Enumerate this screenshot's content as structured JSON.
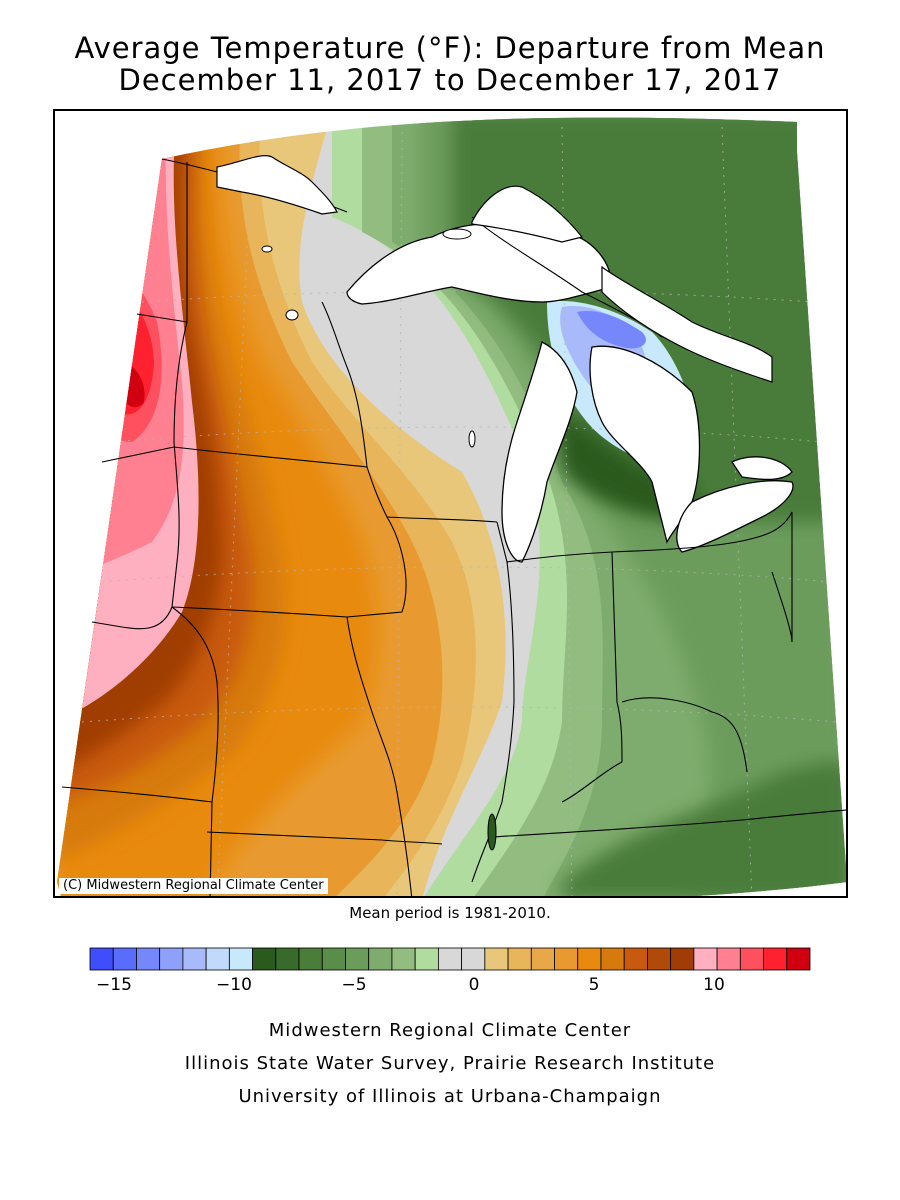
{
  "title_line1": "Average Temperature (°F): Departure from Mean",
  "title_line2": "December 11, 2017 to December 17, 2017",
  "copyright": "(C) Midwestern Regional Climate Center",
  "mean_period": "Mean period is 1981-2010.",
  "legend": {
    "colors": [
      "#3f4dfb",
      "#5a6cfb",
      "#7587fb",
      "#8fa0fb",
      "#a9bafb",
      "#c1d9fb",
      "#c7e9fb",
      "#2a5a1e",
      "#386a2c",
      "#4a7c3a",
      "#5a8c4a",
      "#6c9c5c",
      "#7eac6e",
      "#92bc80",
      "#b0dca0",
      "#d8d8d8",
      "#d8d8d8",
      "#e8c77a",
      "#e8b55a",
      "#e8a748",
      "#e89a30",
      "#e88a10",
      "#d77a0e",
      "#c85a10",
      "#b04a08",
      "#a03c06",
      "#ffb0c0",
      "#ff8090",
      "#ff5060",
      "#ff2030",
      "#d00010"
    ],
    "tick_labels": [
      "-15",
      "-10",
      "-5",
      "0",
      "5",
      "10"
    ],
    "tick_values": [
      -15,
      -10,
      -5,
      0,
      5,
      10
    ],
    "min": -16,
    "max": 14
  },
  "footer": {
    "line1": "Midwestern Regional Climate Center",
    "line2": "Illinois State Water Survey, Prairie Research Institute",
    "line3": "University of Illinois at Urbana-Champaign"
  }
}
